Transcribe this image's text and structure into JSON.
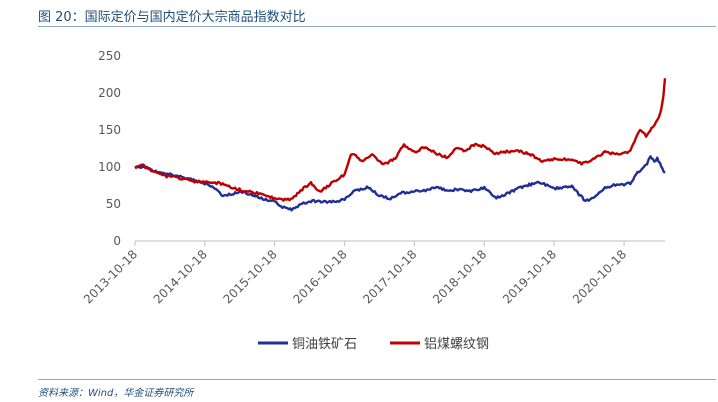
{
  "figure": {
    "title": "图 20：国际定价与国内定价大宗商品指数对比",
    "source": "资料来源：Wind，华金证券研究所"
  },
  "colors": {
    "title_text": "#1f4e79",
    "series_blue": "#1f2f96",
    "series_red": "#c00000",
    "axis": "#bfbfbf",
    "tick_text": "#595959"
  },
  "chart_data": {
    "type": "line",
    "title": "",
    "xlabel": "",
    "ylabel": "",
    "ylim": [
      0,
      250
    ],
    "yticks": [
      0,
      50,
      100,
      150,
      200,
      250
    ],
    "ytick_labels": [
      "0",
      "50",
      "100",
      "150",
      "200",
      "250"
    ],
    "grid": false,
    "legend_position": "bottom",
    "x_tick_labels": [
      "2013-10-18",
      "2014-10-18",
      "2015-10-18",
      "2016-10-18",
      "2017-10-18",
      "2018-10-18",
      "2019-10-18",
      "2020-10-18"
    ],
    "x_domain": [
      "2013-10-18",
      "2021-05-20"
    ],
    "series": [
      {
        "name": "铜油铁矿石",
        "color": "#1f2f96",
        "points": [
          [
            "2013-10-18",
            100
          ],
          [
            "2013-12-20",
            99
          ],
          [
            "2014-02-20",
            92
          ],
          [
            "2014-04-20",
            90
          ],
          [
            "2014-06-20",
            87
          ],
          [
            "2014-08-20",
            82
          ],
          [
            "2014-10-18",
            78
          ],
          [
            "2014-12-10",
            70
          ],
          [
            "2015-01-20",
            62
          ],
          [
            "2015-03-10",
            64
          ],
          [
            "2015-05-10",
            66
          ],
          [
            "2015-07-10",
            60
          ],
          [
            "2015-09-10",
            55
          ],
          [
            "2015-10-18",
            54
          ],
          [
            "2015-11-20",
            47
          ],
          [
            "2016-01-15",
            42
          ],
          [
            "2016-03-10",
            50
          ],
          [
            "2016-05-10",
            54
          ],
          [
            "2016-07-10",
            53
          ],
          [
            "2016-09-10",
            54
          ],
          [
            "2016-10-18",
            56
          ],
          [
            "2016-11-25",
            66
          ],
          [
            "2017-01-10",
            70
          ],
          [
            "2017-02-20",
            73
          ],
          [
            "2017-04-10",
            62
          ],
          [
            "2017-06-15",
            57
          ],
          [
            "2017-08-15",
            65
          ],
          [
            "2017-10-18",
            67
          ],
          [
            "2017-12-15",
            68
          ],
          [
            "2018-02-10",
            73
          ],
          [
            "2018-04-10",
            68
          ],
          [
            "2018-06-10",
            70
          ],
          [
            "2018-08-10",
            67
          ],
          [
            "2018-10-18",
            72
          ],
          [
            "2018-12-20",
            58
          ],
          [
            "2019-02-20",
            65
          ],
          [
            "2019-04-20",
            72
          ],
          [
            "2019-06-10",
            76
          ],
          [
            "2019-08-10",
            79
          ],
          [
            "2019-09-20",
            74
          ],
          [
            "2019-10-18",
            71
          ],
          [
            "2019-12-20",
            73
          ],
          [
            "2020-01-20",
            75
          ],
          [
            "2020-02-25",
            63
          ],
          [
            "2020-03-30",
            54
          ],
          [
            "2020-05-10",
            58
          ],
          [
            "2020-07-10",
            72
          ],
          [
            "2020-09-10",
            76
          ],
          [
            "2020-10-18",
            76
          ],
          [
            "2020-11-20",
            78
          ],
          [
            "2020-12-20",
            90
          ],
          [
            "2021-01-20",
            98
          ],
          [
            "2021-02-15",
            105
          ],
          [
            "2021-03-05",
            115
          ],
          [
            "2021-03-25",
            106
          ],
          [
            "2021-04-10",
            113
          ],
          [
            "2021-04-30",
            100
          ],
          [
            "2021-05-20",
            92
          ]
        ]
      },
      {
        "name": "铝煤螺纹钢",
        "color": "#c00000",
        "points": [
          [
            "2013-10-18",
            100
          ],
          [
            "2013-11-20",
            103
          ],
          [
            "2014-01-10",
            96
          ],
          [
            "2014-03-10",
            88
          ],
          [
            "2014-05-10",
            87
          ],
          [
            "2014-07-10",
            83
          ],
          [
            "2014-09-10",
            80
          ],
          [
            "2014-10-18",
            80
          ],
          [
            "2014-12-10",
            79
          ],
          [
            "2015-01-20",
            77
          ],
          [
            "2015-03-10",
            72
          ],
          [
            "2015-05-10",
            68
          ],
          [
            "2015-07-10",
            65
          ],
          [
            "2015-09-10",
            61
          ],
          [
            "2015-10-18",
            57
          ],
          [
            "2015-12-10",
            56
          ],
          [
            "2016-01-20",
            57
          ],
          [
            "2016-03-10",
            70
          ],
          [
            "2016-04-25",
            78
          ],
          [
            "2016-06-10",
            66
          ],
          [
            "2016-08-10",
            78
          ],
          [
            "2016-10-18",
            90
          ],
          [
            "2016-11-20",
            118
          ],
          [
            "2016-12-15",
            115
          ],
          [
            "2017-01-20",
            107
          ],
          [
            "2017-03-10",
            117
          ],
          [
            "2017-05-10",
            103
          ],
          [
            "2017-07-10",
            112
          ],
          [
            "2017-08-25",
            130
          ],
          [
            "2017-10-18",
            120
          ],
          [
            "2017-12-15",
            128
          ],
          [
            "2018-02-10",
            118
          ],
          [
            "2018-04-10",
            113
          ],
          [
            "2018-05-20",
            125
          ],
          [
            "2018-07-10",
            122
          ],
          [
            "2018-08-25",
            130
          ],
          [
            "2018-10-18",
            128
          ],
          [
            "2018-12-15",
            118
          ],
          [
            "2019-02-20",
            121
          ],
          [
            "2019-04-20",
            121
          ],
          [
            "2019-06-10",
            118
          ],
          [
            "2019-08-10",
            108
          ],
          [
            "2019-10-18",
            111
          ],
          [
            "2019-12-20",
            110
          ],
          [
            "2020-01-20",
            111
          ],
          [
            "2020-03-10",
            104
          ],
          [
            "2020-05-10",
            110
          ],
          [
            "2020-07-10",
            120
          ],
          [
            "2020-09-10",
            117
          ],
          [
            "2020-10-18",
            118
          ],
          [
            "2020-11-20",
            122
          ],
          [
            "2020-12-20",
            140
          ],
          [
            "2021-01-10",
            150
          ],
          [
            "2021-02-10",
            142
          ],
          [
            "2021-03-10",
            152
          ],
          [
            "2021-04-10",
            162
          ],
          [
            "2021-04-30",
            178
          ],
          [
            "2021-05-12",
            198
          ],
          [
            "2021-05-20",
            220
          ]
        ]
      }
    ]
  }
}
